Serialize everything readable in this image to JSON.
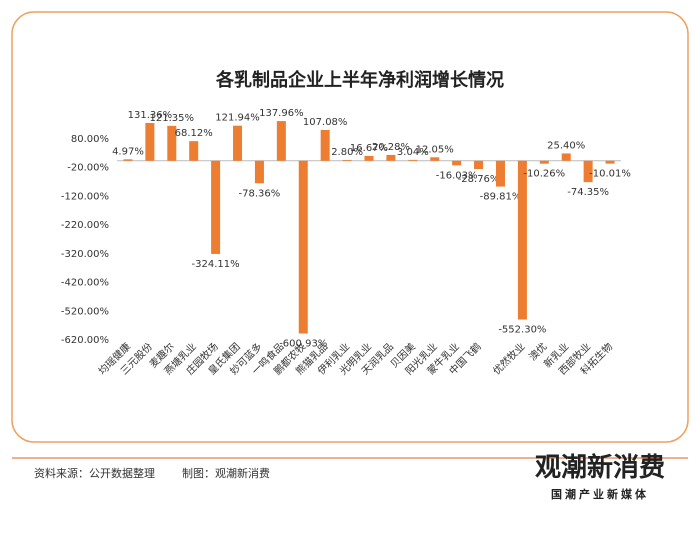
{
  "chart_data": {
    "type": "bar",
    "title": "各乳制品企业上半年净利润增长情况",
    "categories": [
      "均瑶健康",
      "三元股份",
      "麦趣尔",
      "燕塘乳业",
      "庄园牧场",
      "皇氏集团",
      "妙可蓝多",
      "一鸣食品",
      "鹏都农牧",
      "熊猫乳品",
      "伊利乳业",
      "光明乳业",
      "天润乳品",
      "贝因美",
      "阳光乳业",
      "蒙牛乳业",
      "中国飞鹤",
      null,
      "优然牧业",
      "澳优",
      "新乳业",
      "西部牧业",
      "科拓生物"
    ],
    "values": [
      4.97,
      131.36,
      121.35,
      68.12,
      -324.11,
      121.94,
      -78.36,
      137.96,
      -600.93,
      107.08,
      2.8,
      16.67,
      20.28,
      3.04,
      12.05,
      -16.03,
      -28.76,
      -89.81,
      -552.3,
      -10.26,
      25.4,
      -74.35,
      -10.01
    ],
    "value_labels": [
      "4.97%",
      "131.36%",
      "121.35%",
      "68.12%",
      "-324.11%",
      "121.94%",
      "-78.36%",
      "137.96%",
      "-600.93%",
      "107.08%",
      "2.80%",
      "16.67%",
      "20.28%",
      "3.04%",
      "12.05%",
      "-16.03%",
      "-28.76%",
      "-89.81%",
      "-552.30%",
      "-10.26%",
      "25.40%",
      "-74.35%",
      "-10.01%"
    ],
    "color": "#ed7d31",
    "ylim": [
      -620,
      180
    ],
    "yticks": [
      {
        "value": 80,
        "label": "80.00%"
      },
      {
        "value": -20,
        "label": "-20.00%"
      },
      {
        "value": -120,
        "label": "-120.00%"
      },
      {
        "value": -220,
        "label": "-220.00%"
      },
      {
        "value": -320,
        "label": "-320.00%"
      },
      {
        "value": -420,
        "label": "-420.00%"
      },
      {
        "value": -520,
        "label": "-520.00%"
      },
      {
        "value": -620,
        "label": "-620.00%"
      }
    ],
    "grid": false
  },
  "footer": {
    "source": "资料来源：公开数据整理",
    "maker": "制图：观潮新消费",
    "logo": "观潮新消费",
    "slogan": "国潮产业新媒体"
  }
}
